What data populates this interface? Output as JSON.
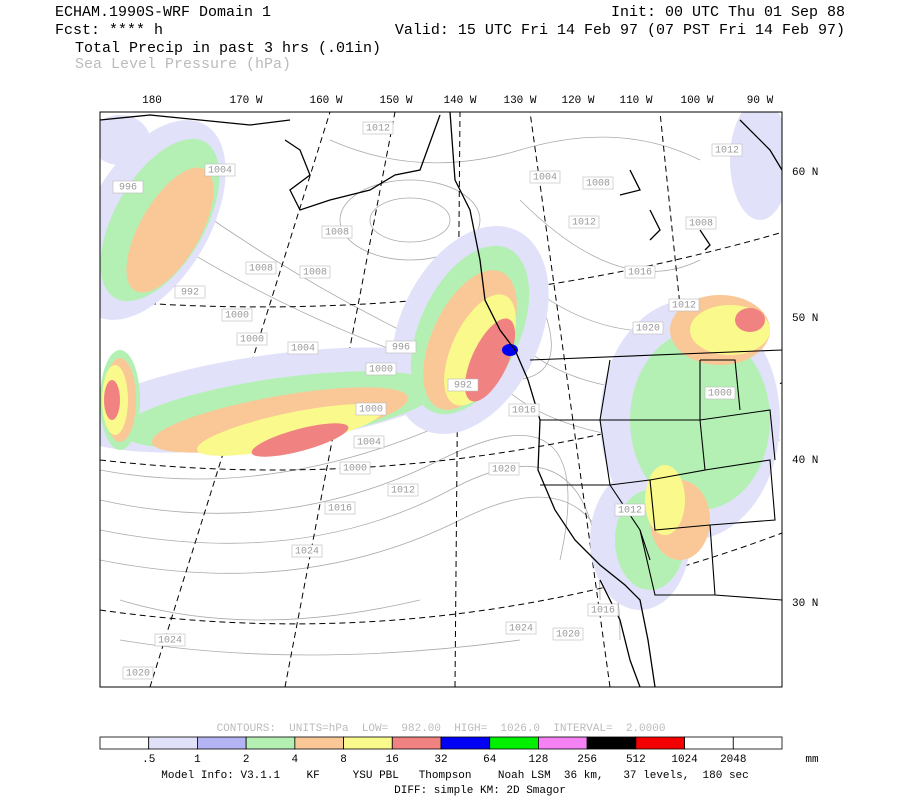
{
  "header": {
    "title": "ECHAM.1990S-WRF Domain 1",
    "forecast": "Fcst: **** h",
    "init": "Init: 00 UTC Thu 01 Sep 88",
    "valid": "Valid: 15 UTC Fri 14 Feb 97 (07 PST Fri 14 Feb 97)",
    "field_1": "Total Precip in past 3 hrs (.01in)",
    "field_2": "Sea Level Pressure (hPa)"
  },
  "map": {
    "longitude_labels": [
      "180",
      "170 W",
      "160 W",
      "150 W",
      "140 W",
      "130 W",
      "120 W",
      "110 W",
      "100 W",
      "90 W"
    ],
    "latitude_labels": [
      "60 N",
      "50 N",
      "40 N",
      "30 N"
    ],
    "contour_labels": [
      "1012",
      "1004",
      "1004",
      "1012",
      "1008",
      "1012",
      "996",
      "1008",
      "1008",
      "1008",
      "1008",
      "1016",
      "992",
      "1000",
      "1012",
      "1020",
      "1000",
      "1004",
      "996",
      "1000",
      "1000",
      "992",
      "1016",
      "1000",
      "1004",
      "1000",
      "1020",
      "1012",
      "1016",
      "1012",
      "1024",
      "1016",
      "1024",
      "1020",
      "1024",
      "1020"
    ]
  },
  "contour_info": "CONTOURS:  UNITS=hPa  LOW=  982.00  HIGH=  1026.0  INTERVAL=  2.0000",
  "legend": {
    "colors": [
      "#ffffff",
      "#e1e1fa",
      "#b4b4f5",
      "#b4f0b4",
      "#fac896",
      "#fafa8c",
      "#f08282",
      "#0000f5",
      "#00f000",
      "#f582f5",
      "#000000",
      "#f50000",
      "#ffffff",
      "#ffffff"
    ],
    "labels": [
      ".5",
      "1",
      "2",
      "4",
      "8",
      "16",
      "32",
      "64",
      "128",
      "256",
      "512",
      "1024",
      "2048"
    ],
    "unit": "mm"
  },
  "footer": {
    "model_info": "Model Info: V3.1.1    KF     YSU PBL   Thompson    Noah LSM  36 km,   37 levels,  180 sec",
    "diff": "DIFF: simple KM: 2D Smagor"
  }
}
